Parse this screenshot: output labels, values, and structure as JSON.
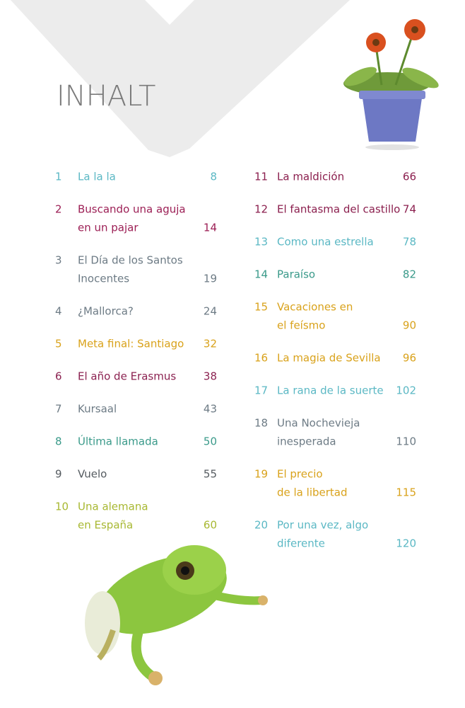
{
  "title": "INHALT",
  "entries": [
    {
      "number": "1",
      "lines": [
        "La la la"
      ],
      "page": "8",
      "color": "#5bb8c4"
    },
    {
      "number": "2",
      "lines": [
        "Buscando una aguja",
        "en un pajar"
      ],
      "page": "14",
      "color": "#9c1f55"
    },
    {
      "number": "3",
      "lines": [
        "El Día de los Santos",
        "Inocentes"
      ],
      "page": "19",
      "color": "#6d7b85"
    },
    {
      "number": "4",
      "lines": [
        "¿Mallorca?"
      ],
      "page": "24",
      "color": "#6d7b85"
    },
    {
      "number": "5",
      "lines": [
        "Meta final: Santiago"
      ],
      "page": "32",
      "color": "#d9a21b"
    },
    {
      "number": "6",
      "lines": [
        "El año de Erasmus"
      ],
      "page": "38",
      "color": "#8b2150"
    },
    {
      "number": "7",
      "lines": [
        "Kursaal"
      ],
      "page": "43",
      "color": "#6d7b85"
    },
    {
      "number": "8",
      "lines": [
        "Última llamada"
      ],
      "page": "50",
      "color": "#3a9a8a"
    },
    {
      "number": "9",
      "lines": [
        "Vuelo"
      ],
      "page": "55",
      "color": "#555b60"
    },
    {
      "number": "10",
      "lines": [
        "Una alemana",
        "en España"
      ],
      "page": "60",
      "color": "#a8b832"
    },
    {
      "number": "11",
      "lines": [
        "La maldición"
      ],
      "page": "66",
      "color": "#8b1f4e"
    },
    {
      "number": "12",
      "lines": [
        "El fantasma del castillo"
      ],
      "page": "74",
      "color": "#8b1f4e"
    },
    {
      "number": "13",
      "lines": [
        "Como una estrella"
      ],
      "page": "78",
      "color": "#5bb8c4"
    },
    {
      "number": "14",
      "lines": [
        "Paraíso"
      ],
      "page": "82",
      "color": "#3a9a8a"
    },
    {
      "number": "15",
      "lines": [
        "Vacaciones en",
        "el feísmo"
      ],
      "page": "90",
      "color": "#d9a21b"
    },
    {
      "number": "16",
      "lines": [
        "La magia de Sevilla"
      ],
      "page": "96",
      "color": "#d9a21b"
    },
    {
      "number": "17",
      "lines": [
        "La rana de la suerte"
      ],
      "page": "102",
      "color": "#5bb8c4"
    },
    {
      "number": "18",
      "lines": [
        "Una Nochevieja",
        "inesperada"
      ],
      "page": "110",
      "color": "#6d7b85"
    },
    {
      "number": "19",
      "lines": [
        "El precio",
        "de la libertad"
      ],
      "page": "115",
      "color": "#d9a21b"
    },
    {
      "number": "20",
      "lines": [
        "Por una vez, algo",
        "diferente"
      ],
      "page": "120",
      "color": "#5bb8c4"
    }
  ]
}
